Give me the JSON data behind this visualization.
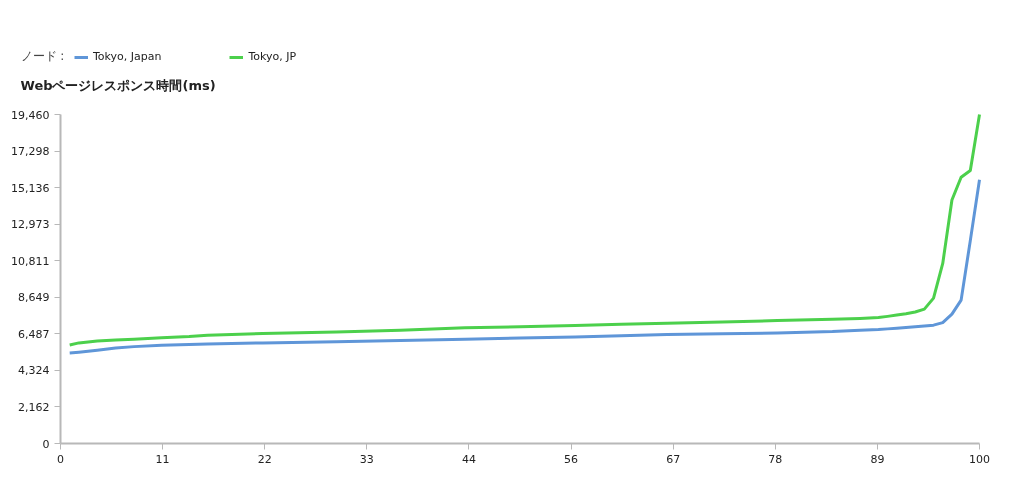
{
  "chart_data": {
    "type": "line",
    "ylabel": "Webページレスポンス時間(ms)",
    "legend_title": "ノード :",
    "legend": "top left",
    "grid": false,
    "x": [
      1,
      2,
      3,
      4,
      6,
      8,
      11,
      14,
      16,
      22,
      30,
      37,
      44,
      50,
      56,
      61,
      66,
      72,
      78,
      84,
      87,
      89,
      90,
      91,
      92,
      93,
      94,
      95,
      96,
      97,
      98,
      99,
      100
    ],
    "xlim": [
      0,
      100
    ],
    "xticks": [
      0,
      {
        "value": 11.11,
        "label": "11"
      },
      {
        "value": 22.22,
        "label": "22"
      },
      {
        "value": 33.33,
        "label": "33"
      },
      {
        "value": 44.44,
        "label": "44"
      },
      {
        "value": 55.56,
        "label": "56"
      },
      {
        "value": 66.67,
        "label": "67"
      },
      {
        "value": 77.78,
        "label": "78"
      },
      {
        "value": 88.89,
        "label": "89"
      },
      100
    ],
    "ylim": [
      0,
      19460
    ],
    "yticks": [
      0,
      {
        "value": 2162,
        "label": "2,162"
      },
      {
        "value": 4324,
        "label": "4,324"
      },
      {
        "value": 6487,
        "label": "6,487"
      },
      {
        "value": 8649,
        "label": "8,649"
      },
      {
        "value": 10811,
        "label": "10,811"
      },
      {
        "value": 12973,
        "label": "12,973"
      },
      {
        "value": 15136,
        "label": "15,136"
      },
      {
        "value": 17298,
        "label": "17,298"
      },
      {
        "value": 19460,
        "label": "19,460"
      }
    ],
    "series": [
      {
        "name": "Tokyo, Japan",
        "color": "#5f96d8",
        "values": [
          5360,
          5400,
          5450,
          5510,
          5650,
          5730,
          5810,
          5860,
          5890,
          5950,
          6020,
          6090,
          6170,
          6240,
          6300,
          6370,
          6440,
          6490,
          6540,
          6620,
          6700,
          6740,
          6780,
          6820,
          6860,
          6900,
          6950,
          7000,
          7150,
          7650,
          8480,
          12000,
          15600
        ]
      },
      {
        "name": "Tokyo, JP",
        "color": "#4cd04c",
        "values": [
          5830,
          5950,
          6010,
          6060,
          6120,
          6170,
          6260,
          6330,
          6410,
          6500,
          6600,
          6700,
          6840,
          6910,
          6980,
          7050,
          7110,
          7180,
          7270,
          7350,
          7400,
          7450,
          7520,
          7600,
          7680,
          7780,
          7950,
          8600,
          10650,
          14400,
          15750,
          16150,
          19460
        ]
      }
    ]
  }
}
